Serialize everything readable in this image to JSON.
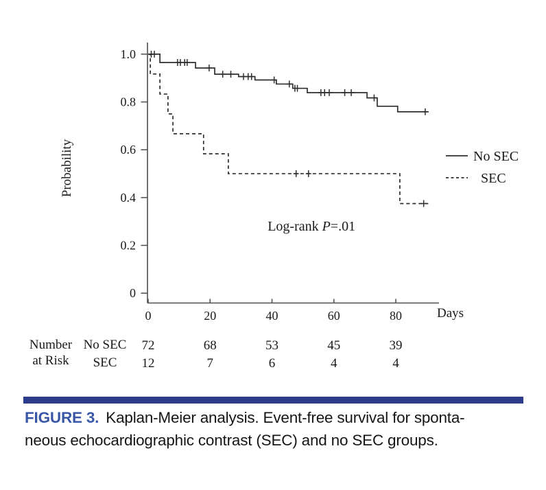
{
  "figure": {
    "caption_label": "FIGURE 3.",
    "caption_line1": "Kaplan-Meier analysis. Event-free survival for sponta-",
    "caption_line2": "neous echocardiographic contrast (SEC) and no SEC groups.",
    "caption_label_color": "#3a57a7",
    "caption_text_color": "#161616",
    "rule_color": "#2d3c8d"
  },
  "chart_data": {
    "type": "line",
    "subtype": "kaplan-meier-step",
    "title": "",
    "xlabel": "Days",
    "ylabel": "Probability",
    "xlim": [
      0,
      94
    ],
    "ylim": [
      0,
      1.0
    ],
    "xticks": [
      0,
      20,
      40,
      60,
      80
    ],
    "yticks": [
      1.0,
      0.8,
      0.6,
      0.4,
      0.2,
      0
    ],
    "ytick_labels": [
      "1.0",
      "0.8",
      "0.6",
      "0.4",
      "0.2",
      "0"
    ],
    "grid": false,
    "curve_color": "#2e2e2e",
    "axis_color": "#4d4d4d",
    "text_color": "#1a1a1a",
    "legend": {
      "position": "right-middle",
      "entries": [
        {
          "label": "No SEC",
          "dash": false
        },
        {
          "label": "SEC",
          "dash": true
        }
      ]
    },
    "annotation": {
      "text_prefix": "Log-rank ",
      "italic_symbol": "P",
      "text_suffix": "=.01",
      "x": 38.6,
      "y": 0.262
    },
    "series": [
      {
        "name": "No SEC",
        "dash": false,
        "steps": [
          [
            0,
            1.0
          ],
          [
            3.8,
            0.965
          ],
          [
            15.3,
            0.942
          ],
          [
            21.5,
            0.916
          ],
          [
            29.2,
            0.906
          ],
          [
            34.5,
            0.892
          ],
          [
            41.4,
            0.875
          ],
          [
            46.7,
            0.857
          ],
          [
            51.4,
            0.839
          ],
          [
            70.7,
            0.817
          ],
          [
            74.0,
            0.782
          ],
          [
            80.6,
            0.759
          ],
          [
            90.6,
            0.759
          ]
        ],
        "censors": [
          [
            1,
            1.0
          ],
          [
            2,
            1.0
          ],
          [
            9.5,
            0.965
          ],
          [
            10.4,
            0.965
          ],
          [
            11.8,
            0.965
          ],
          [
            12.6,
            0.965
          ],
          [
            19.7,
            0.942
          ],
          [
            24.1,
            0.916
          ],
          [
            26.7,
            0.916
          ],
          [
            30.8,
            0.906
          ],
          [
            32.3,
            0.906
          ],
          [
            33.4,
            0.906
          ],
          [
            40.7,
            0.892
          ],
          [
            45.6,
            0.875
          ],
          [
            47.4,
            0.857
          ],
          [
            48.2,
            0.857
          ],
          [
            55.8,
            0.839
          ],
          [
            57.0,
            0.839
          ],
          [
            58.5,
            0.839
          ],
          [
            63.5,
            0.839
          ],
          [
            65.6,
            0.839
          ],
          [
            73.0,
            0.817
          ],
          [
            89.5,
            0.759
          ]
        ]
      },
      {
        "name": "SEC",
        "dash": true,
        "steps": [
          [
            0,
            1.0
          ],
          [
            0.7,
            0.917
          ],
          [
            3.8,
            0.833
          ],
          [
            6.4,
            0.75
          ],
          [
            8.0,
            0.667
          ],
          [
            17.9,
            0.583
          ],
          [
            25.9,
            0.5
          ],
          [
            81.3,
            0.375
          ],
          [
            91.2,
            0.375
          ]
        ],
        "censors": [
          [
            47.8,
            0.5
          ],
          [
            51.8,
            0.5
          ],
          [
            89.0,
            0.375
          ]
        ]
      }
    ],
    "number_at_risk": {
      "row_header_line1": "Number",
      "row_header_line2": "at Risk",
      "times": [
        0,
        20,
        40,
        60,
        80
      ],
      "rows": [
        {
          "label": "No SEC",
          "values": [
            72,
            68,
            53,
            45,
            39
          ]
        },
        {
          "label": "SEC",
          "values": [
            12,
            7,
            6,
            4,
            4
          ]
        }
      ]
    }
  }
}
